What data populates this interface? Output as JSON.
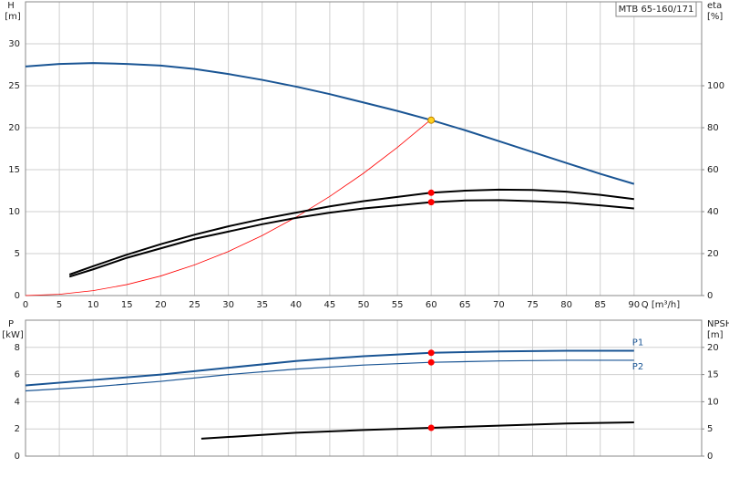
{
  "chart_data": [
    {
      "type": "line",
      "title": "MTB 65-160/171",
      "xlabel": "Q [m³/h]",
      "ylabel": "H",
      "yunit": "[m]",
      "y2label": "eta",
      "y2unit": "[%]",
      "xlim": [
        0,
        100
      ],
      "xticks": [
        0,
        5,
        10,
        15,
        20,
        25,
        30,
        35,
        40,
        45,
        50,
        55,
        60,
        65,
        70,
        75,
        80,
        85,
        90
      ],
      "ylim": [
        0,
        35
      ],
      "yticks": [
        0,
        5,
        10,
        15,
        20,
        25,
        30
      ],
      "y2lim": [
        0,
        140
      ],
      "y2ticks": [
        0,
        20,
        40,
        60,
        80,
        100
      ],
      "grid": true,
      "series": [
        {
          "color": "#1a5594",
          "axis": "y",
          "x": [
            0,
            5,
            10,
            15,
            20,
            25,
            30,
            35,
            40,
            45,
            50,
            55,
            60,
            65,
            70,
            75,
            80,
            85,
            90
          ],
          "values": [
            27.3,
            27.6,
            27.7,
            27.6,
            27.4,
            27.0,
            26.4,
            25.7,
            24.9,
            24.0,
            23.0,
            22.0,
            20.9,
            19.7,
            18.4,
            17.1,
            15.8,
            14.5,
            13.3
          ]
        },
        {
          "color": "#ff0000",
          "axis": "y",
          "x": [
            0,
            5,
            10,
            15,
            20,
            25,
            30,
            35,
            40,
            45,
            50,
            55,
            60
          ],
          "values": [
            0,
            0.15,
            0.58,
            1.31,
            2.33,
            3.65,
            5.25,
            7.15,
            9.33,
            11.81,
            14.58,
            17.65,
            21.0
          ]
        },
        {
          "color": "#000000",
          "axis": "y2",
          "x": [
            6.5,
            10,
            15,
            20,
            25,
            30,
            35,
            40,
            45,
            50,
            55,
            60,
            65,
            70,
            75,
            80,
            85,
            90
          ],
          "values": [
            10,
            14,
            19.5,
            24.5,
            29,
            33,
            36.5,
            39.5,
            42.5,
            45,
            47,
            49,
            50,
            50.5,
            50.3,
            49.5,
            48,
            46
          ]
        },
        {
          "color": "#000000",
          "axis": "y2",
          "x": [
            6.5,
            10,
            15,
            20,
            25,
            30,
            35,
            40,
            45,
            50,
            55,
            60,
            65,
            70,
            75,
            80,
            85,
            90
          ],
          "values": [
            9,
            12.5,
            18,
            22.5,
            27,
            30.5,
            34,
            37,
            39.5,
            41.5,
            43,
            44.5,
            45.3,
            45.5,
            45,
            44.3,
            43,
            41.5
          ]
        }
      ],
      "points": [
        {
          "x": 60,
          "y": 20.9,
          "axis": "y",
          "color": "#ffd21f"
        },
        {
          "x": 60,
          "y": 49,
          "axis": "y2",
          "color": "#ff0000"
        },
        {
          "x": 60,
          "y": 44.5,
          "axis": "y2",
          "color": "#ff0000"
        }
      ]
    },
    {
      "type": "line",
      "ylabel": "P",
      "yunit": "[kW]",
      "y2label": "NPSH",
      "y2unit": "[m]",
      "xlim": [
        0,
        100
      ],
      "ylim": [
        0,
        10
      ],
      "yticks": [
        0,
        2,
        4,
        6,
        8
      ],
      "y2lim": [
        0,
        25
      ],
      "y2ticks": [
        0,
        5,
        10,
        15,
        20
      ],
      "grid": true,
      "series": [
        {
          "name": "P1",
          "color": "#1a5594",
          "axis": "y",
          "x": [
            0,
            10,
            20,
            30,
            40,
            50,
            60,
            70,
            80,
            90
          ],
          "values": [
            5.2,
            5.6,
            6.0,
            6.5,
            7.0,
            7.35,
            7.6,
            7.7,
            7.75,
            7.75
          ]
        },
        {
          "name": "P2",
          "color": "#1a5594",
          "axis": "y",
          "x": [
            0,
            10,
            20,
            30,
            40,
            50,
            60,
            70,
            80,
            90
          ],
          "values": [
            4.8,
            5.1,
            5.5,
            6.0,
            6.4,
            6.7,
            6.9,
            7.0,
            7.05,
            7.05
          ]
        },
        {
          "color": "#000000",
          "axis": "y2",
          "x": [
            26,
            40,
            50,
            60,
            70,
            80,
            90
          ],
          "values": [
            3.2,
            4.3,
            4.8,
            5.2,
            5.6,
            6.0,
            6.2
          ]
        }
      ],
      "points": [
        {
          "x": 60,
          "y": 7.6,
          "axis": "y",
          "color": "#ff0000"
        },
        {
          "x": 60,
          "y": 6.9,
          "axis": "y",
          "color": "#ff0000"
        },
        {
          "x": 60,
          "y": 5.2,
          "axis": "y2",
          "color": "#ff0000"
        }
      ]
    }
  ]
}
